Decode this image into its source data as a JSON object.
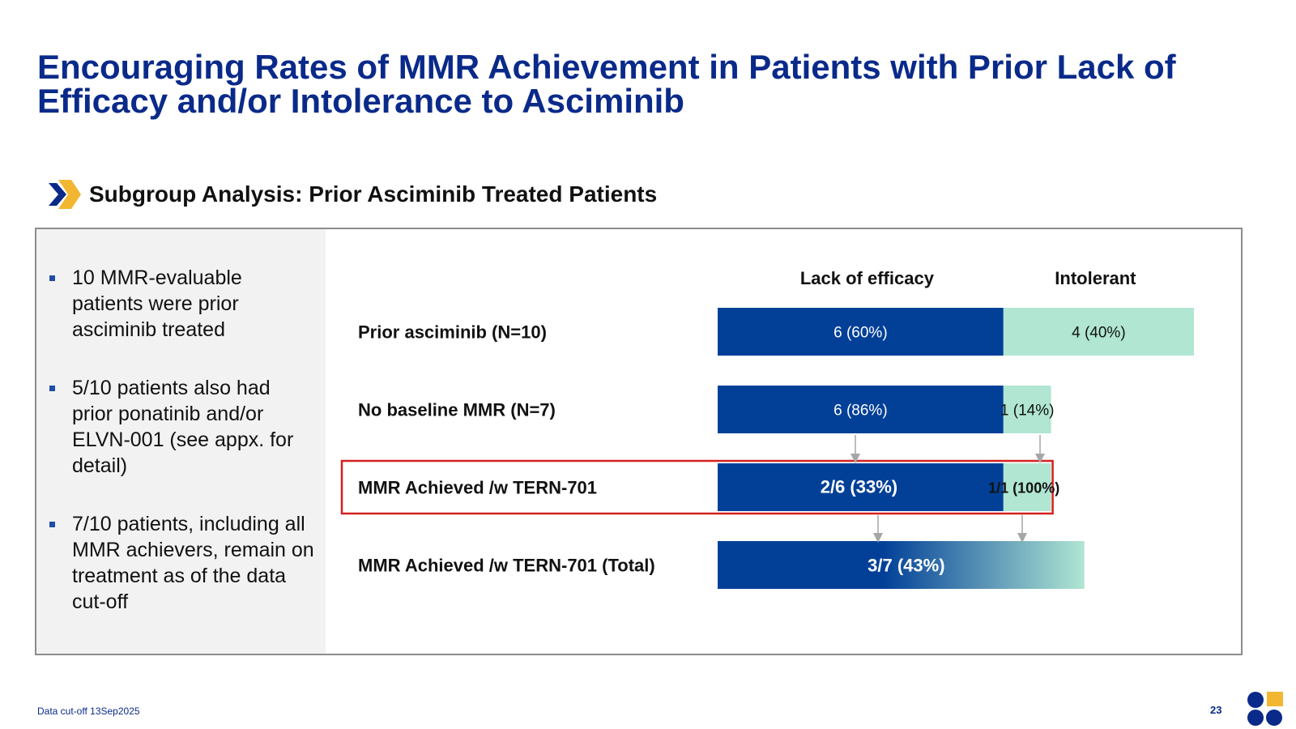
{
  "title": "Encouraging Rates of MMR Achievement in Patients with Prior Lack of Efficacy and/or Intolerance to Asciminib",
  "subheading": "Subgroup Analysis: Prior Asciminib Treated Patients",
  "bullets": [
    "10 MMR-evaluable patients were prior asciminib treated",
    "5/10 patients also had prior ponatinib and/or ELVN-001 (see appx. for detail)",
    "7/10 patients, including all MMR achievers, remain on treatment as of the data cut-off"
  ],
  "footnote": "Data cut-off 13Sep2025",
  "page_number": "23",
  "colors": {
    "title": "#0a2a8a",
    "lack_of_efficacy": "#024098",
    "intolerant": "#b0e6d2",
    "highlight_border": "#d42020",
    "chevron_dark": "#0a2a8a",
    "chevron_gold": "#f2b632"
  },
  "chart_data": {
    "type": "bar",
    "orientation": "horizontal",
    "stacked": true,
    "series": [
      {
        "name": "Lack of efficacy",
        "color": "#024098"
      },
      {
        "name": "Intolerant",
        "color": "#b0e6d2"
      }
    ],
    "rows": [
      {
        "label": "Prior asciminib (N=10)",
        "values": [
          6,
          4
        ],
        "labels": [
          "6 (60%)",
          "4 (40%)"
        ],
        "highlight": false,
        "bold_values": false,
        "merged": false
      },
      {
        "label": "No baseline MMR (N=7)",
        "values": [
          6,
          1
        ],
        "labels": [
          "6 (86%)",
          "1 (14%)"
        ],
        "highlight": false,
        "bold_values": false,
        "merged": false
      },
      {
        "label": "MMR Achieved /w TERN-701",
        "values": [
          6,
          1
        ],
        "labels": [
          "2/6 (33%)",
          "1/1 (100%)"
        ],
        "highlight": true,
        "bold_values": true,
        "merged": false
      },
      {
        "label": "MMR Achieved /w TERN-701 (Total)",
        "values": [
          7
        ],
        "labels": [
          "3/7 (43%)"
        ],
        "highlight": false,
        "bold_values": true,
        "merged": true
      }
    ]
  }
}
